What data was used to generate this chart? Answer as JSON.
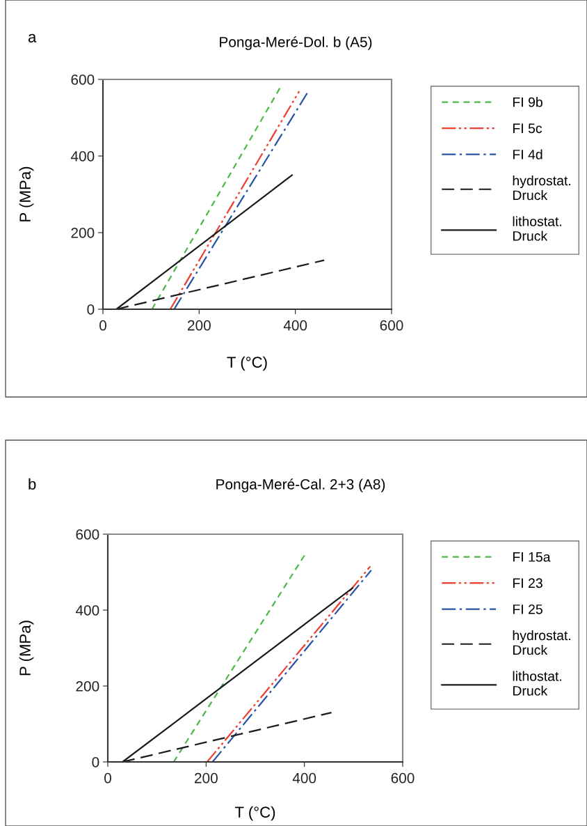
{
  "chart_data": [
    {
      "type": "line",
      "title": "Ponga-Meré-Dol. b (A5)",
      "xlabel": "T (°C)",
      "ylabel": "P (MPa)",
      "annotations": [
        "a"
      ],
      "xlim": [
        0,
        600
      ],
      "xticks": [
        0,
        200,
        400,
        600
      ],
      "ylim": [
        0,
        600
      ],
      "yticks": [
        0,
        200,
        400,
        600
      ],
      "grid": false,
      "legend": "right",
      "marker": "none",
      "series": [
        {
          "name": "FI 9b",
          "color": "#4cb848",
          "line_style": "dashed",
          "x": [
            102,
            369
          ],
          "values": [
            0,
            580
          ]
        },
        {
          "name": "FI 5c",
          "color": "#ee3e32",
          "line_style": "dashdotdot",
          "x": [
            140,
            408
          ],
          "values": [
            0,
            569
          ]
        },
        {
          "name": "FI 4d",
          "color": "#2a53a3",
          "line_style": "dashdot",
          "x": [
            148,
            427
          ],
          "values": [
            0,
            569
          ]
        },
        {
          "name": "hydrostat.\nDruck",
          "color": "#1a1a1a",
          "line_style": "longdash",
          "x": [
            28,
            460
          ],
          "values": [
            0,
            128
          ]
        },
        {
          "name": "lithostat.\nDruck",
          "color": "#1a1a1a",
          "line_style": "solid",
          "x": [
            28,
            393
          ],
          "values": [
            0,
            350
          ]
        }
      ]
    },
    {
      "type": "line",
      "title": "Ponga-Meré-Cal. 2+3 (A8)",
      "xlabel": "T (°C)",
      "ylabel": "P (MPa)",
      "annotations": [
        "b"
      ],
      "xlim": [
        0,
        600
      ],
      "xticks": [
        0,
        200,
        400,
        600
      ],
      "ylim": [
        0,
        600
      ],
      "yticks": [
        0,
        200,
        400,
        600
      ],
      "grid": false,
      "legend": "right",
      "marker": "none",
      "series": [
        {
          "name": "FI 15a",
          "color": "#4cb848",
          "line_style": "dashed",
          "x": [
            134,
            402
          ],
          "values": [
            0,
            548
          ]
        },
        {
          "name": "FI 23",
          "color": "#ee3e32",
          "line_style": "dashdotdot",
          "x": [
            202,
            534
          ],
          "values": [
            0,
            515
          ]
        },
        {
          "name": "FI 25",
          "color": "#2a53a3",
          "line_style": "dashdot",
          "x": [
            213,
            536
          ],
          "values": [
            0,
            505
          ]
        },
        {
          "name": "hydrostat.\nDruck",
          "color": "#1a1a1a",
          "line_style": "longdash",
          "x": [
            30,
            455
          ],
          "values": [
            0,
            130
          ]
        },
        {
          "name": "lithostat.\nDruck",
          "color": "#1a1a1a",
          "line_style": "solid",
          "x": [
            30,
            498
          ],
          "values": [
            0,
            458
          ]
        }
      ]
    }
  ]
}
